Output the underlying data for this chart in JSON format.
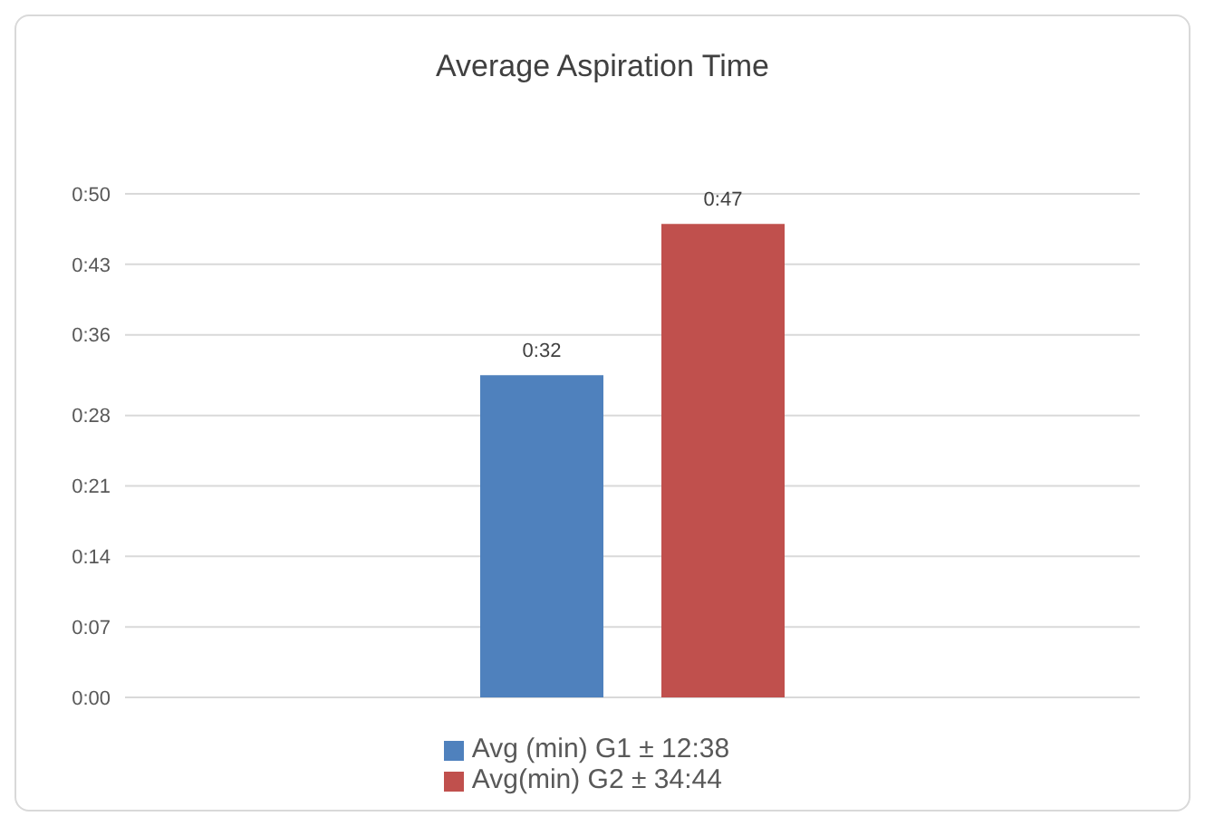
{
  "chart_data": {
    "type": "bar",
    "title": "Average Aspiration Time",
    "categories": [
      null
    ],
    "series": [
      {
        "name": "Avg (min) G1 ± 12:38",
        "color": "#4f81bd",
        "values": [
          32
        ],
        "value_labels": [
          "0:32"
        ]
      },
      {
        "name": "Avg(min) G2 ± 34:44",
        "color": "#c0504d",
        "values": [
          47
        ],
        "value_labels": [
          "0:47"
        ]
      }
    ],
    "ylim": [
      0,
      50
    ],
    "yticks": [
      {
        "value": 0,
        "label": "0:00"
      },
      {
        "value": 7,
        "label": "0:07"
      },
      {
        "value": 14,
        "label": "0:14"
      },
      {
        "value": 21,
        "label": "0:21"
      },
      {
        "value": 28,
        "label": "0:28"
      },
      {
        "value": 36,
        "label": "0:36"
      },
      {
        "value": 43,
        "label": "0:43"
      },
      {
        "value": 50,
        "label": "0:50"
      }
    ],
    "grid": "y",
    "legend": "bottom"
  }
}
